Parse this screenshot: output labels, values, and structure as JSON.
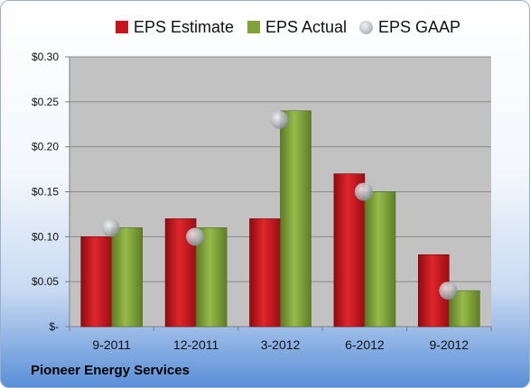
{
  "chart_data": {
    "type": "bar",
    "categories": [
      "9-2011",
      "12-2011",
      "3-2012",
      "6-2012",
      "9-2012"
    ],
    "series": [
      {
        "name": "EPS Estimate",
        "kind": "bar",
        "color": "#c8141c",
        "values": [
          0.1,
          0.12,
          0.12,
          0.17,
          0.08
        ]
      },
      {
        "name": "EPS Actual",
        "kind": "bar",
        "color": "#7fa23a",
        "values": [
          0.11,
          0.11,
          0.24,
          0.15,
          0.04
        ]
      },
      {
        "name": "EPS GAAP",
        "kind": "marker",
        "color": "#a9adb4",
        "values": [
          0.11,
          0.1,
          0.23,
          0.15,
          0.04
        ]
      }
    ],
    "yticks": [
      "$-",
      "$0.05",
      "$0.10",
      "$0.15",
      "$0.20",
      "$0.25",
      "$0.30"
    ],
    "ylim": [
      0,
      0.3
    ],
    "grid": true,
    "legend": "top"
  },
  "footer": {
    "company": "Pioneer Energy Services"
  }
}
